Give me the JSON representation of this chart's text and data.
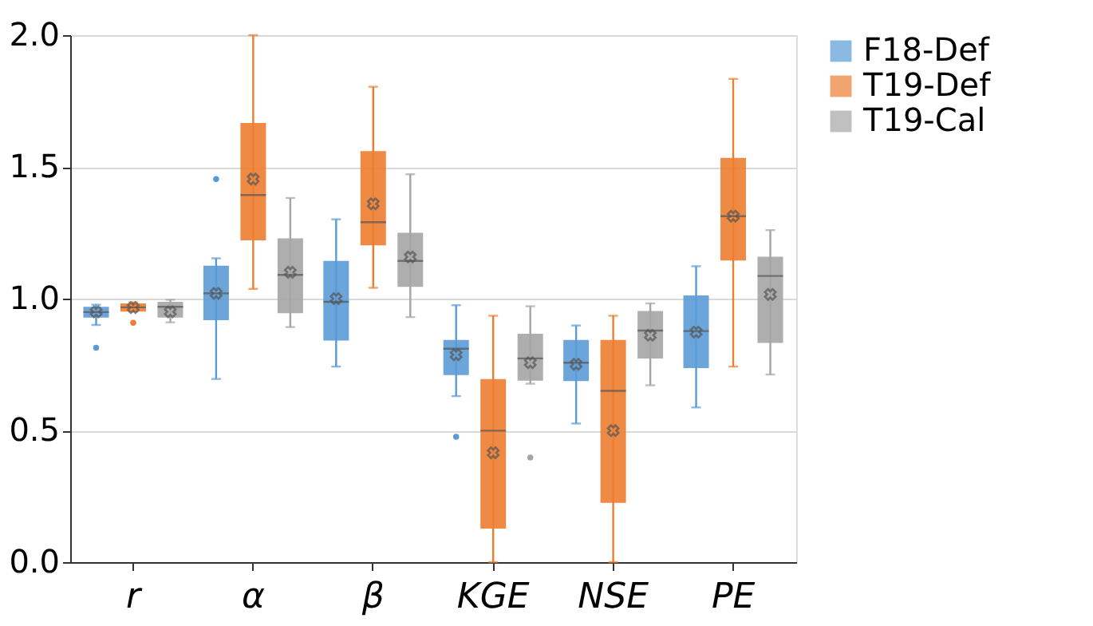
{
  "chart_data": {
    "type": "box",
    "categories": [
      "r",
      "α",
      "β",
      "KGE",
      "NSE",
      "PE"
    ],
    "ylim": [
      0,
      2
    ],
    "yticks": [
      {
        "value": 0,
        "label": "0.0"
      },
      {
        "value": 0.5,
        "label": "0.5"
      },
      {
        "value": 1,
        "label": "1.0"
      },
      {
        "value": 1.5,
        "label": "1.5"
      },
      {
        "value": 2,
        "label": "2.0"
      }
    ],
    "grid": "y",
    "legend": "right",
    "marker": "cross",
    "series": [
      {
        "name": "F18-Def",
        "color": "#5b9bd5",
        "boxes": [
          {
            "low": 0.9,
            "q1": 0.928,
            "median": 0.949,
            "q3": 0.969,
            "high": 0.977,
            "mean": 0.95,
            "outliers": [
              0.814
            ]
          },
          {
            "low": 0.695,
            "q1": 0.918,
            "median": 1.02,
            "q3": 1.125,
            "high": 1.153,
            "mean": 1.02,
            "outliers": [
              1.454
            ]
          },
          {
            "low": 0.742,
            "q1": 0.841,
            "median": 0.988,
            "q3": 1.143,
            "high": 1.301,
            "mean": 1.0
          },
          {
            "low": 0.63,
            "q1": 0.71,
            "median": 0.81,
            "q3": 0.843,
            "high": 0.975,
            "mean": 0.787,
            "outliers": [
              0.476
            ]
          },
          {
            "low": 0.526,
            "q1": 0.687,
            "median": 0.757,
            "q3": 0.843,
            "high": 0.898,
            "mean": 0.751
          },
          {
            "low": 0.587,
            "q1": 0.736,
            "median": 0.877,
            "q3": 1.012,
            "high": 1.123,
            "mean": 0.873
          }
        ]
      },
      {
        "name": "T19-Def",
        "color": "#ed7d31",
        "boxes": [
          {
            "low": 0.951,
            "q1": 0.951,
            "median": 0.967,
            "q3": 0.982,
            "high": 0.986,
            "mean": 0.966,
            "outliers": [
              0.908
            ]
          },
          {
            "low": 1.037,
            "q1": 1.221,
            "median": 1.393,
            "q3": 1.667,
            "high": 2.0,
            "mean": 1.454
          },
          {
            "low": 1.041,
            "q1": 1.202,
            "median": 1.29,
            "q3": 1.56,
            "high": 1.804,
            "mean": 1.36
          },
          {
            "low": 0.0,
            "q1": 0.127,
            "median": 0.499,
            "q3": 0.695,
            "high": 0.935,
            "mean": 0.415
          },
          {
            "low": 0.0,
            "q1": 0.225,
            "median": 0.65,
            "q3": 0.843,
            "high": 0.935,
            "mean": 0.499
          },
          {
            "low": 0.742,
            "q1": 1.145,
            "median": 1.313,
            "q3": 1.534,
            "high": 1.834,
            "mean": 1.313
          }
        ]
      },
      {
        "name": "T19-Cal",
        "color": "#a5a5a5",
        "boxes": [
          {
            "low": 0.91,
            "q1": 0.928,
            "median": 0.969,
            "q3": 0.988,
            "high": 0.996,
            "mean": 0.95
          },
          {
            "low": 0.892,
            "q1": 0.945,
            "median": 1.09,
            "q3": 1.229,
            "high": 1.382,
            "mean": 1.1
          },
          {
            "low": 0.93,
            "q1": 1.045,
            "median": 1.143,
            "q3": 1.25,
            "high": 1.472,
            "mean": 1.158
          },
          {
            "low": 0.677,
            "q1": 0.689,
            "median": 0.773,
            "q3": 0.867,
            "high": 0.971,
            "mean": 0.757,
            "outliers": [
              0.397
            ]
          },
          {
            "low": 0.671,
            "q1": 0.773,
            "median": 0.879,
            "q3": 0.953,
            "high": 0.982,
            "mean": 0.861
          },
          {
            "low": 0.712,
            "q1": 0.832,
            "median": 1.086,
            "q3": 1.159,
            "high": 1.26,
            "mean": 1.016
          }
        ]
      }
    ]
  }
}
